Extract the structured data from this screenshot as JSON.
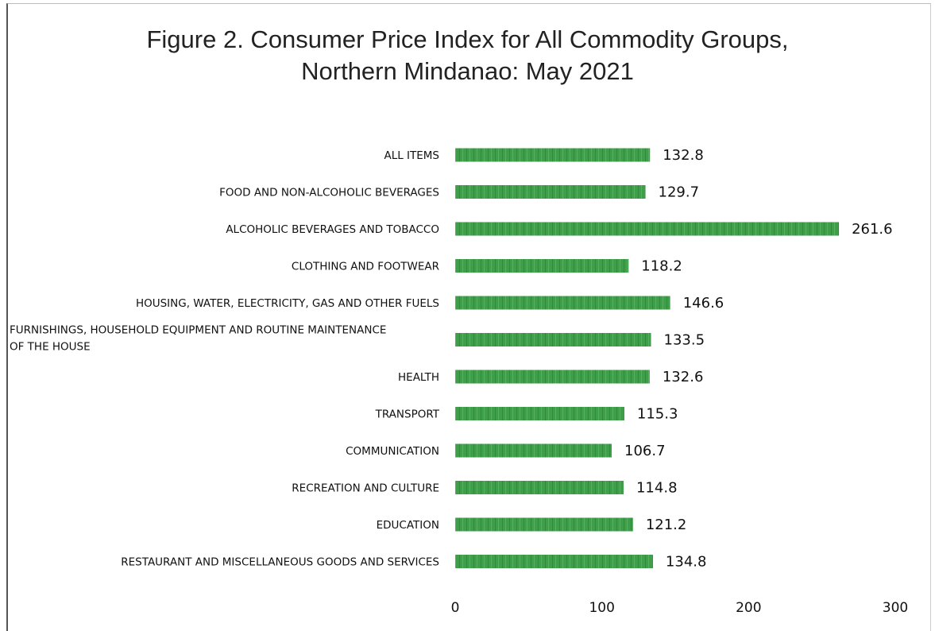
{
  "chart_data": {
    "type": "bar",
    "orientation": "horizontal",
    "title_lines": [
      "Figure 2.  Consumer Price Index for All Commodity Groups,",
      "Northern Mindanao: May 2021"
    ],
    "categories": [
      [
        "ALL ITEMS"
      ],
      [
        "FOOD AND NON-ALCOHOLIC BEVERAGES"
      ],
      [
        "ALCOHOLIC BEVERAGES AND TOBACCO"
      ],
      [
        "CLOTHING AND FOOTWEAR"
      ],
      [
        "HOUSING, WATER, ELECTRICITY, GAS AND OTHER FUELS"
      ],
      [
        "FURNISHINGS, HOUSEHOLD EQUIPMENT AND ROUTINE MAINTENANCE",
        "OF THE  HOUSE"
      ],
      [
        "HEALTH"
      ],
      [
        "TRANSPORT"
      ],
      [
        "COMMUNICATION"
      ],
      [
        "RECREATION AND CULTURE"
      ],
      [
        "EDUCATION"
      ],
      [
        "RESTAURANT AND MISCELLANEOUS GOODS AND SERVICES"
      ]
    ],
    "values": [
      132.8,
      129.7,
      261.6,
      118.2,
      146.6,
      133.5,
      132.6,
      115.3,
      106.7,
      114.8,
      121.2,
      134.8
    ],
    "value_labels": [
      "132.8",
      "129.7",
      "261.6",
      "118.2",
      "146.6",
      "133.5",
      "132.6",
      "115.3",
      "106.7",
      "114.8",
      "121.2",
      "134.8"
    ],
    "xlim": [
      0,
      300
    ],
    "xticks": [
      0,
      100,
      200,
      300
    ],
    "xtick_labels": [
      "0",
      "100",
      "200",
      "300"
    ],
    "bar_color": "#3a9a45",
    "grid": false,
    "legend": "none"
  }
}
